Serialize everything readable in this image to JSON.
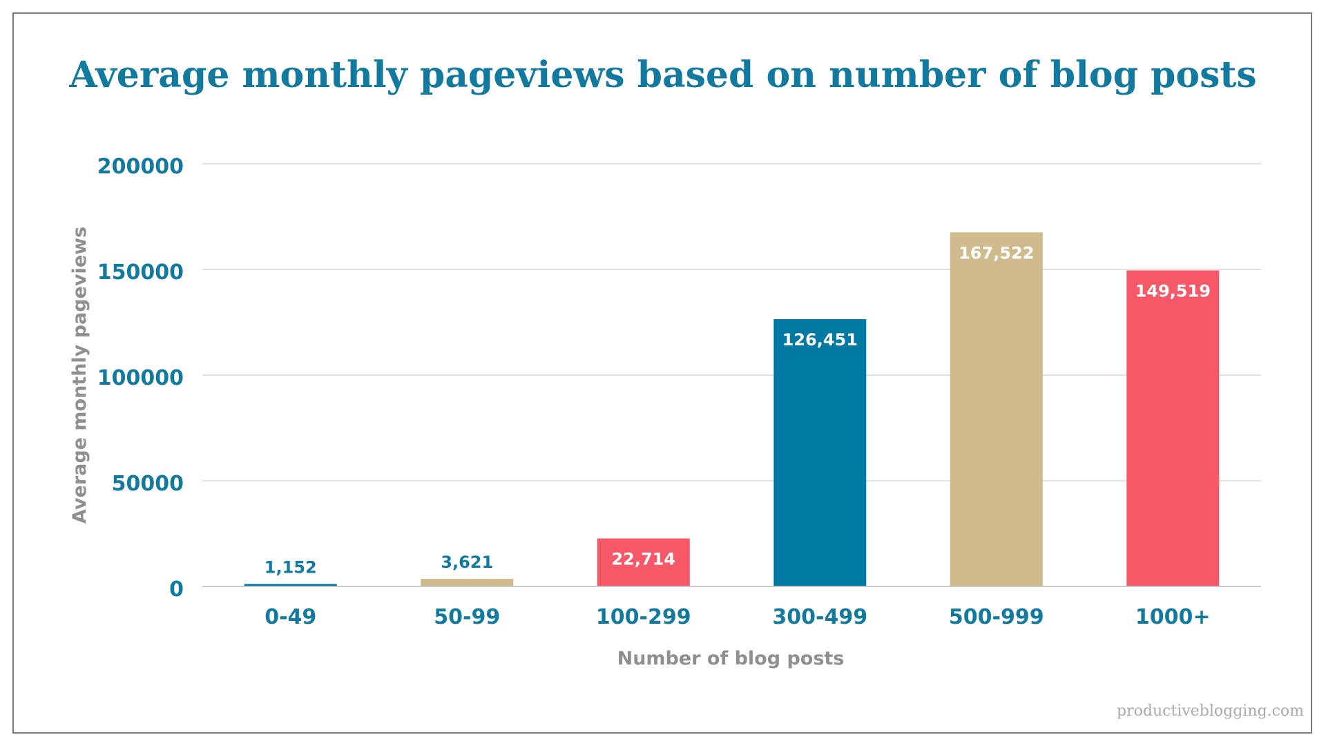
{
  "chart_data": {
    "type": "bar",
    "title": "Average monthly pageviews based on number of blog posts",
    "xlabel": "Number of blog posts",
    "ylabel": "Average monthly pageviews",
    "categories": [
      "0-49",
      "50-99",
      "100-299",
      "300-499",
      "500-999",
      "1000+"
    ],
    "values": [
      1152,
      3621,
      22714,
      126451,
      167522,
      149519
    ],
    "data_labels": [
      "1,152",
      "3,621",
      "22,714",
      "126,451",
      "167,522",
      "149,519"
    ],
    "ylim": [
      0,
      200000
    ],
    "yticks": [
      0,
      50000,
      100000,
      150000,
      200000
    ],
    "ytick_labels": [
      "0",
      "50000",
      "100000",
      "150000",
      "200000"
    ],
    "colors": [
      "#0079a3",
      "#cfbb8c",
      "#f75868",
      "#0079a3",
      "#cfbb8c",
      "#f75868"
    ],
    "grid": true,
    "legend": "none"
  },
  "colors": {
    "title": "#117a9e",
    "tick_text": "#117a9e",
    "axis_title": "#8f8f8f",
    "gridline": "#d9d9d9",
    "baseline": "#c8c8c8",
    "border": "#7a7a7a"
  },
  "watermark": "productiveblogging.com"
}
